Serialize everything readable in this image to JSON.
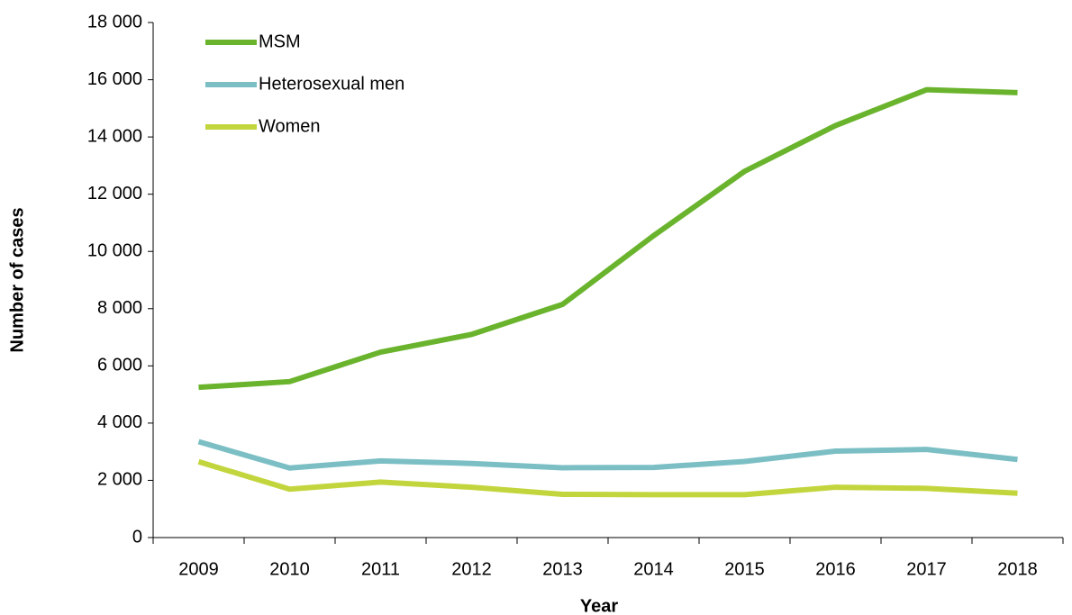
{
  "chart_data": {
    "type": "line",
    "x_label": "Year",
    "y_label": "Number of cases",
    "categories": [
      "2009",
      "2010",
      "2011",
      "2012",
      "2013",
      "2014",
      "2015",
      "2016",
      "2017",
      "2018"
    ],
    "series": [
      {
        "name": "MSM",
        "color": "#6ab42d",
        "values": [
          5250,
          5450,
          6480,
          7100,
          8150,
          10550,
          12800,
          14400,
          15650,
          15550
        ]
      },
      {
        "name": "Heterosexual men",
        "color": "#7bbfc5",
        "values": [
          3350,
          2430,
          2680,
          2590,
          2440,
          2450,
          2660,
          3020,
          3080,
          2730
        ]
      },
      {
        "name": "Women",
        "color": "#c3d53d",
        "values": [
          2650,
          1690,
          1940,
          1760,
          1510,
          1500,
          1500,
          1760,
          1720,
          1550
        ]
      }
    ],
    "ylim": [
      0,
      18000
    ],
    "yticks": [
      0,
      {
        "value": 2000,
        "label": "2 000"
      },
      {
        "value": 4000,
        "label": "4 000"
      },
      {
        "value": 6000,
        "label": "6 000"
      },
      {
        "value": 8000,
        "label": "8 000"
      },
      {
        "value": 10000,
        "label": "10 000"
      },
      {
        "value": 12000,
        "label": "12 000"
      },
      {
        "value": 14000,
        "label": "14 000"
      },
      {
        "value": 16000,
        "label": "16 000"
      },
      {
        "value": 18000,
        "label": "18 000"
      }
    ],
    "grid": false,
    "legend": "upper left"
  }
}
